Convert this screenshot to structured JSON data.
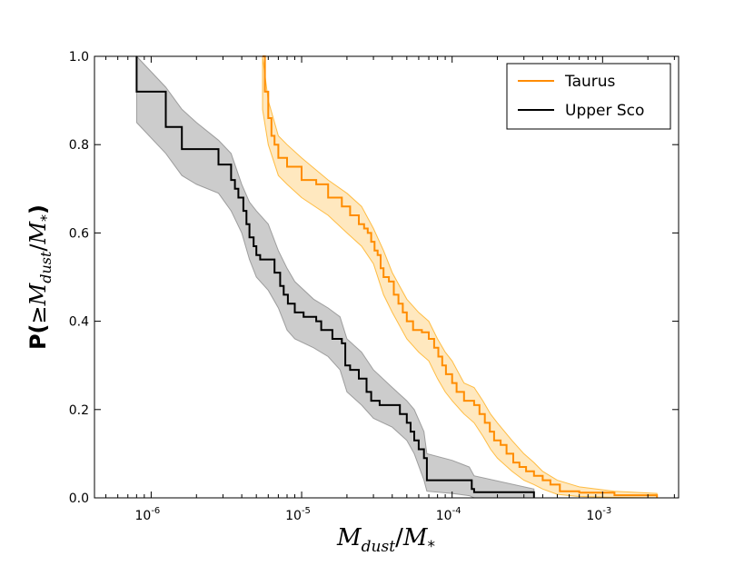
{
  "chart_data": {
    "type": "line",
    "subtype": "cumulative-step",
    "title": "",
    "xlabel": "M_dust/M_*",
    "ylabel": "P(≥M_dust/M_*)",
    "x_scale": "log",
    "xlim": [
      4.2e-07,
      0.0032
    ],
    "ylim": [
      0.0,
      1.0
    ],
    "x_ticks": [
      {
        "value": 1e-06,
        "base": "10",
        "exp": "-6"
      },
      {
        "value": 1e-05,
        "base": "10",
        "exp": "-5"
      },
      {
        "value": 0.0001,
        "base": "10",
        "exp": "-4"
      },
      {
        "value": 0.001,
        "base": "10",
        "exp": "-3"
      }
    ],
    "y_ticks": [
      "0.0",
      "0.2",
      "0.4",
      "0.6",
      "0.8",
      "1.0"
    ],
    "legend_position": "top-right",
    "series": [
      {
        "name": "Taurus",
        "color": "#ff8c00",
        "band_color": "#ffa500",
        "points": [
          [
            5.5e-06,
            1.0
          ],
          [
            5.7e-06,
            0.92
          ],
          [
            6e-06,
            0.86
          ],
          [
            6.3e-06,
            0.82
          ],
          [
            6.6e-06,
            0.8
          ],
          [
            7e-06,
            0.77
          ],
          [
            8e-06,
            0.75
          ],
          [
            1e-05,
            0.72
          ],
          [
            1.25e-05,
            0.71
          ],
          [
            1.5e-05,
            0.68
          ],
          [
            1.85e-05,
            0.66
          ],
          [
            2.1e-05,
            0.64
          ],
          [
            2.4e-05,
            0.62
          ],
          [
            2.6e-05,
            0.61
          ],
          [
            2.75e-05,
            0.6
          ],
          [
            2.9e-05,
            0.58
          ],
          [
            3.05e-05,
            0.56
          ],
          [
            3.2e-05,
            0.55
          ],
          [
            3.35e-05,
            0.52
          ],
          [
            3.5e-05,
            0.5
          ],
          [
            3.8e-05,
            0.49
          ],
          [
            4.1e-05,
            0.46
          ],
          [
            4.4e-05,
            0.44
          ],
          [
            4.7e-05,
            0.42
          ],
          [
            5e-05,
            0.4
          ],
          [
            5.5e-05,
            0.38
          ],
          [
            6.3e-05,
            0.375
          ],
          [
            7e-05,
            0.36
          ],
          [
            7.6e-05,
            0.34
          ],
          [
            8.1e-05,
            0.32
          ],
          [
            8.6e-05,
            0.3
          ],
          [
            9.1e-05,
            0.28
          ],
          [
            0.0001,
            0.26
          ],
          [
            0.000107,
            0.24
          ],
          [
            0.00012,
            0.22
          ],
          [
            0.00014,
            0.21
          ],
          [
            0.000152,
            0.19
          ],
          [
            0.000165,
            0.17
          ],
          [
            0.000178,
            0.15
          ],
          [
            0.00019,
            0.13
          ],
          [
            0.00021,
            0.12
          ],
          [
            0.00023,
            0.1
          ],
          [
            0.000255,
            0.08
          ],
          [
            0.00028,
            0.07
          ],
          [
            0.00031,
            0.06
          ],
          [
            0.00035,
            0.05
          ],
          [
            0.0004,
            0.04
          ],
          [
            0.00045,
            0.03
          ],
          [
            0.00052,
            0.015
          ],
          [
            0.0007,
            0.012
          ],
          [
            0.0012,
            0.006
          ],
          [
            0.0023,
            0.0
          ]
        ],
        "band_upper": [
          [
            5.5e-06,
            1.0
          ],
          [
            6e-06,
            0.9
          ],
          [
            7e-06,
            0.82
          ],
          [
            8e-06,
            0.8
          ],
          [
            1e-05,
            0.77
          ],
          [
            1.5e-05,
            0.72
          ],
          [
            2e-05,
            0.69
          ],
          [
            2.5e-05,
            0.66
          ],
          [
            3e-05,
            0.61
          ],
          [
            3.5e-05,
            0.56
          ],
          [
            4e-05,
            0.51
          ],
          [
            5e-05,
            0.45
          ],
          [
            6e-05,
            0.42
          ],
          [
            7e-05,
            0.4
          ],
          [
            8e-05,
            0.36
          ],
          [
            9e-05,
            0.33
          ],
          [
            0.0001,
            0.31
          ],
          [
            0.00012,
            0.26
          ],
          [
            0.00014,
            0.25
          ],
          [
            0.00016,
            0.22
          ],
          [
            0.00018,
            0.19
          ],
          [
            0.0002,
            0.17
          ],
          [
            0.00025,
            0.13
          ],
          [
            0.0003,
            0.1
          ],
          [
            0.00035,
            0.08
          ],
          [
            0.0004,
            0.06
          ],
          [
            0.0005,
            0.04
          ],
          [
            0.0007,
            0.025
          ],
          [
            0.0012,
            0.015
          ],
          [
            0.0023,
            0.01
          ]
        ],
        "band_lower": [
          [
            5.5e-06,
            0.88
          ],
          [
            6e-06,
            0.8
          ],
          [
            7e-06,
            0.73
          ],
          [
            8e-06,
            0.71
          ],
          [
            1e-05,
            0.68
          ],
          [
            1.5e-05,
            0.64
          ],
          [
            2e-05,
            0.6
          ],
          [
            2.5e-05,
            0.57
          ],
          [
            3e-05,
            0.53
          ],
          [
            3.5e-05,
            0.46
          ],
          [
            4e-05,
            0.42
          ],
          [
            5e-05,
            0.36
          ],
          [
            6e-05,
            0.33
          ],
          [
            7e-05,
            0.31
          ],
          [
            8e-05,
            0.27
          ],
          [
            9e-05,
            0.24
          ],
          [
            0.0001,
            0.22
          ],
          [
            0.00012,
            0.19
          ],
          [
            0.00014,
            0.17
          ],
          [
            0.00016,
            0.14
          ],
          [
            0.00018,
            0.11
          ],
          [
            0.0002,
            0.09
          ],
          [
            0.00025,
            0.06
          ],
          [
            0.0003,
            0.04
          ],
          [
            0.00035,
            0.03
          ],
          [
            0.0004,
            0.02
          ],
          [
            0.0005,
            0.008
          ],
          [
            0.0007,
            0.003
          ],
          [
            0.0012,
            0.001
          ],
          [
            0.0023,
            0.0
          ]
        ]
      },
      {
        "name": "Upper Sco",
        "color": "#000000",
        "band_color": "#808080",
        "points": [
          [
            8e-07,
            1.0
          ],
          [
            8e-07,
            0.92
          ],
          [
            1.25e-06,
            0.84
          ],
          [
            1.6e-06,
            0.79
          ],
          [
            2.8e-06,
            0.755
          ],
          [
            3.4e-06,
            0.72
          ],
          [
            3.6e-06,
            0.7
          ],
          [
            3.8e-06,
            0.68
          ],
          [
            4.1e-06,
            0.65
          ],
          [
            4.3e-06,
            0.62
          ],
          [
            4.5e-06,
            0.59
          ],
          [
            4.8e-06,
            0.57
          ],
          [
            5e-06,
            0.55
          ],
          [
            5.3e-06,
            0.54
          ],
          [
            6.6e-06,
            0.51
          ],
          [
            7.2e-06,
            0.48
          ],
          [
            7.6e-06,
            0.46
          ],
          [
            8.1e-06,
            0.44
          ],
          [
            9e-06,
            0.42
          ],
          [
            1.03e-05,
            0.41
          ],
          [
            1.25e-05,
            0.4
          ],
          [
            1.35e-05,
            0.38
          ],
          [
            1.6e-05,
            0.36
          ],
          [
            1.85e-05,
            0.35
          ],
          [
            1.95e-05,
            0.3
          ],
          [
            2.1e-05,
            0.29
          ],
          [
            2.4e-05,
            0.27
          ],
          [
            2.7e-05,
            0.24
          ],
          [
            2.9e-05,
            0.22
          ],
          [
            3.3e-05,
            0.21
          ],
          [
            4.5e-05,
            0.19
          ],
          [
            5e-05,
            0.17
          ],
          [
            5.3e-05,
            0.15
          ],
          [
            5.6e-05,
            0.13
          ],
          [
            6e-05,
            0.11
          ],
          [
            6.5e-05,
            0.09
          ],
          [
            6.8e-05,
            0.04
          ],
          [
            0.0001,
            0.04
          ],
          [
            0.00013,
            0.04
          ],
          [
            0.000135,
            0.02
          ],
          [
            0.00014,
            0.013
          ],
          [
            0.00035,
            0.0
          ]
        ],
        "band_upper": [
          [
            8e-07,
            1.0
          ],
          [
            1.25e-06,
            0.93
          ],
          [
            1.6e-06,
            0.88
          ],
          [
            2e-06,
            0.85
          ],
          [
            2.8e-06,
            0.81
          ],
          [
            3.4e-06,
            0.78
          ],
          [
            4e-06,
            0.71
          ],
          [
            4.5e-06,
            0.67
          ],
          [
            5e-06,
            0.65
          ],
          [
            6e-06,
            0.62
          ],
          [
            7e-06,
            0.56
          ],
          [
            8e-06,
            0.52
          ],
          [
            9e-06,
            0.49
          ],
          [
            1.2e-05,
            0.45
          ],
          [
            1.5e-05,
            0.43
          ],
          [
            1.8e-05,
            0.41
          ],
          [
            2e-05,
            0.36
          ],
          [
            2.5e-05,
            0.33
          ],
          [
            3e-05,
            0.29
          ],
          [
            4e-05,
            0.25
          ],
          [
            5e-05,
            0.22
          ],
          [
            5.6e-05,
            0.2
          ],
          [
            6.5e-05,
            0.15
          ],
          [
            6.8e-05,
            0.1
          ],
          [
            0.0001,
            0.085
          ],
          [
            0.00013,
            0.07
          ],
          [
            0.00014,
            0.05
          ],
          [
            0.00035,
            0.02
          ]
        ],
        "band_lower": [
          [
            8e-07,
            0.85
          ],
          [
            1.25e-06,
            0.78
          ],
          [
            1.6e-06,
            0.73
          ],
          [
            2e-06,
            0.71
          ],
          [
            2.8e-06,
            0.69
          ],
          [
            3.4e-06,
            0.65
          ],
          [
            4e-06,
            0.6
          ],
          [
            4.5e-06,
            0.54
          ],
          [
            5e-06,
            0.5
          ],
          [
            6e-06,
            0.47
          ],
          [
            7e-06,
            0.43
          ],
          [
            8e-06,
            0.38
          ],
          [
            9e-06,
            0.36
          ],
          [
            1.2e-05,
            0.34
          ],
          [
            1.5e-05,
            0.32
          ],
          [
            1.8e-05,
            0.29
          ],
          [
            2e-05,
            0.24
          ],
          [
            2.5e-05,
            0.21
          ],
          [
            3e-05,
            0.18
          ],
          [
            4e-05,
            0.16
          ],
          [
            5e-05,
            0.13
          ],
          [
            5.6e-05,
            0.1
          ],
          [
            6.5e-05,
            0.04
          ],
          [
            6.8e-05,
            0.015
          ],
          [
            0.0001,
            0.01
          ],
          [
            0.00013,
            0.005
          ],
          [
            0.00014,
            0.0
          ],
          [
            0.00035,
            0.0
          ]
        ]
      }
    ]
  }
}
